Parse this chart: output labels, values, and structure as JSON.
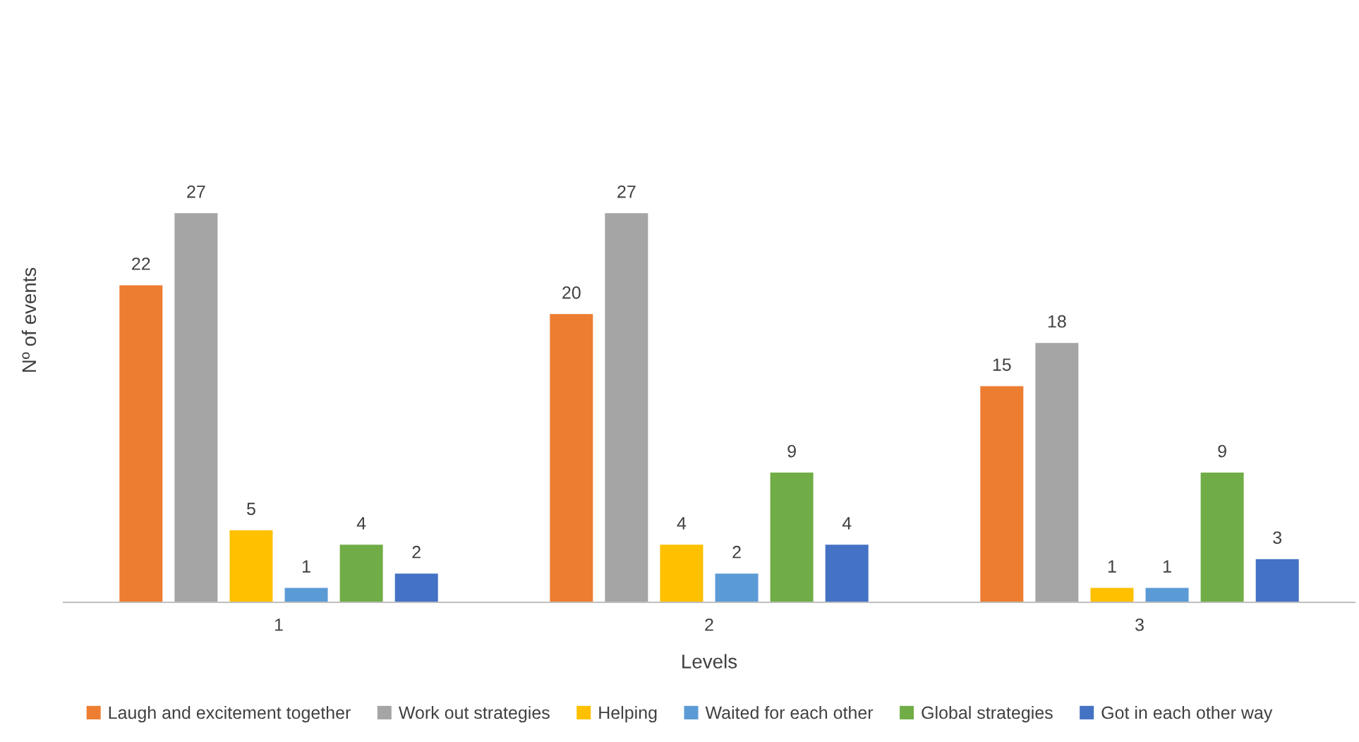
{
  "chart_data": {
    "type": "bar",
    "xlabel": "Levels",
    "ylabel": "Nº of events",
    "categories": [
      "1",
      "2",
      "3"
    ],
    "series": [
      {
        "name": "Laugh and excitement together",
        "color": "#ed7d31",
        "values": [
          22,
          20,
          15
        ]
      },
      {
        "name": "Work out strategies",
        "color": "#a5a5a5",
        "values": [
          27,
          27,
          18
        ]
      },
      {
        "name": "Helping",
        "color": "#ffc000",
        "values": [
          5,
          4,
          1
        ]
      },
      {
        "name": "Waited for each other",
        "color": "#5b9bd5",
        "values": [
          1,
          2,
          1
        ]
      },
      {
        "name": "Global strategies",
        "color": "#70ad47",
        "values": [
          4,
          9,
          9
        ]
      },
      {
        "name": "Got in each other way",
        "color": "#4472c4",
        "values": [
          2,
          4,
          3
        ]
      }
    ],
    "data_labels": true,
    "grid": false,
    "legend": "bottom"
  }
}
